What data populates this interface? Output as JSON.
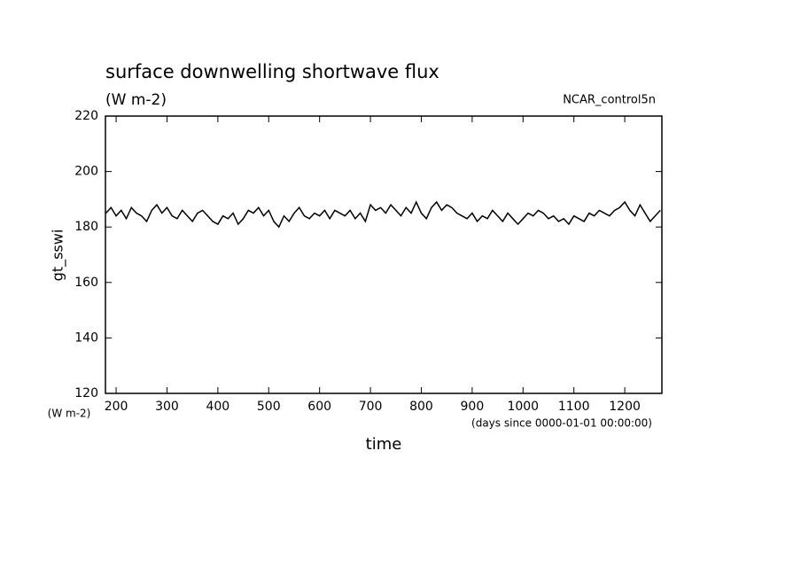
{
  "chart_data": {
    "type": "line",
    "title": "surface downwelling shortwave flux",
    "subtitle": "(W m-2)",
    "annotation": "NCAR_control5n",
    "y_label": "gt_sswi",
    "y_unit": "(W m-2)",
    "x_label": "time",
    "x_unit": "(days since 0000-01-01 00:00:00)",
    "x": [
      180,
      190,
      200,
      210,
      220,
      230,
      240,
      250,
      260,
      270,
      280,
      290,
      300,
      310,
      320,
      330,
      340,
      350,
      360,
      370,
      380,
      390,
      400,
      410,
      420,
      430,
      440,
      450,
      460,
      470,
      480,
      490,
      500,
      510,
      520,
      530,
      540,
      550,
      560,
      570,
      580,
      590,
      600,
      610,
      620,
      630,
      640,
      650,
      660,
      670,
      680,
      690,
      700,
      710,
      720,
      730,
      740,
      750,
      760,
      770,
      780,
      790,
      800,
      810,
      820,
      830,
      840,
      850,
      860,
      870,
      880,
      890,
      900,
      910,
      920,
      930,
      940,
      950,
      960,
      970,
      980,
      990,
      1000,
      1010,
      1020,
      1030,
      1040,
      1050,
      1060,
      1070,
      1080,
      1090,
      1100,
      1110,
      1120,
      1130,
      1140,
      1150,
      1160,
      1170,
      1180,
      1190,
      1200,
      1210,
      1220,
      1230,
      1240,
      1250,
      1260,
      1270
    ],
    "series": [
      {
        "color": "#000000",
        "values": [
          185,
          187,
          184,
          186,
          183,
          187,
          185,
          184,
          182,
          186,
          188,
          185,
          187,
          184,
          183,
          186,
          184,
          182,
          185,
          186,
          184,
          182,
          181,
          184,
          183,
          185,
          181,
          183,
          186,
          185,
          187,
          184,
          186,
          182,
          180,
          184,
          182,
          185,
          187,
          184,
          183,
          185,
          184,
          186,
          183,
          186,
          185,
          184,
          186,
          183,
          185,
          182,
          188,
          186,
          187,
          185,
          188,
          186,
          184,
          187,
          185,
          189,
          185,
          183,
          187,
          189,
          186,
          188,
          187,
          185,
          184,
          183,
          185,
          182,
          184,
          183,
          186,
          184,
          182,
          185,
          183,
          181,
          183,
          185,
          184,
          186,
          185,
          183,
          184,
          182,
          183,
          181,
          184,
          183,
          182,
          185,
          184,
          186,
          185,
          184,
          186,
          187,
          189,
          186,
          184,
          188,
          185,
          182,
          184,
          186
        ]
      }
    ],
    "xlim": [
      179,
      1273
    ],
    "ylim": [
      120,
      220
    ],
    "xticks": [
      200,
      300,
      400,
      500,
      600,
      700,
      800,
      900,
      1000,
      1100,
      1200
    ],
    "yticks": [
      120,
      140,
      160,
      180,
      200,
      220
    ]
  }
}
